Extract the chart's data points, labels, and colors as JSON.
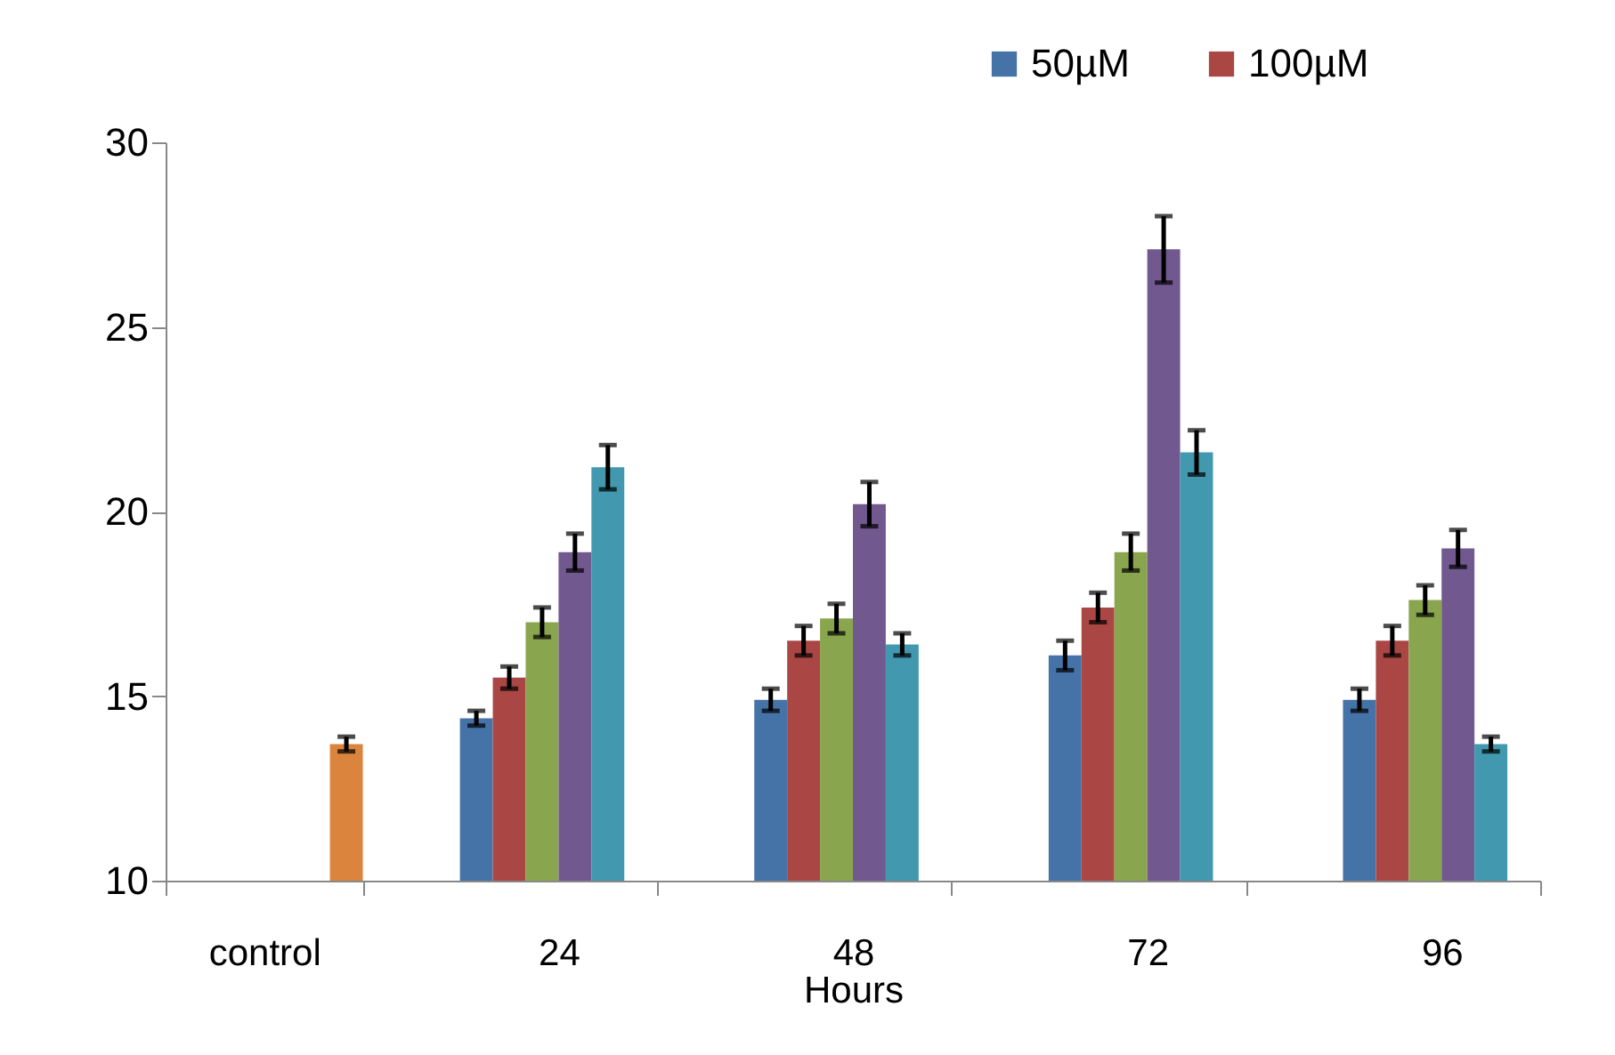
{
  "chart_data": {
    "type": "bar",
    "xlabel": "Hours",
    "categories": [
      "control",
      "24",
      "48",
      "72",
      "96"
    ],
    "series": [
      {
        "name": "50µM",
        "color": "#4572a7",
        "values": [
          null,
          14.4,
          14.9,
          16.1,
          14.9
        ],
        "errors": [
          null,
          0.2,
          0.3,
          0.4,
          0.3
        ]
      },
      {
        "name": "100µM",
        "color": "#aa4643",
        "values": [
          null,
          15.5,
          16.5,
          17.4,
          16.5
        ],
        "errors": [
          null,
          0.3,
          0.4,
          0.4,
          0.4
        ]
      },
      {
        "color": "#89a54e",
        "values": [
          null,
          17.0,
          17.1,
          18.9,
          17.6
        ],
        "errors": [
          null,
          0.4,
          0.4,
          0.5,
          0.4
        ]
      },
      {
        "color": "#71588f",
        "values": [
          null,
          18.9,
          20.2,
          27.1,
          19.0
        ],
        "errors": [
          null,
          0.5,
          0.6,
          0.9,
          0.5
        ]
      },
      {
        "color": "#4198af",
        "values": [
          null,
          21.2,
          16.4,
          21.6,
          13.7
        ],
        "errors": [
          null,
          0.6,
          0.3,
          0.6,
          0.2
        ]
      },
      {
        "color": "#db843d",
        "values": [
          13.7,
          null,
          null,
          null,
          null
        ],
        "errors": [
          0.2,
          null,
          null,
          null,
          null
        ]
      }
    ],
    "ylim": [
      10,
      30
    ],
    "yticks": [
      10,
      15,
      20,
      25,
      30
    ],
    "grid": false,
    "legend": "top right"
  }
}
